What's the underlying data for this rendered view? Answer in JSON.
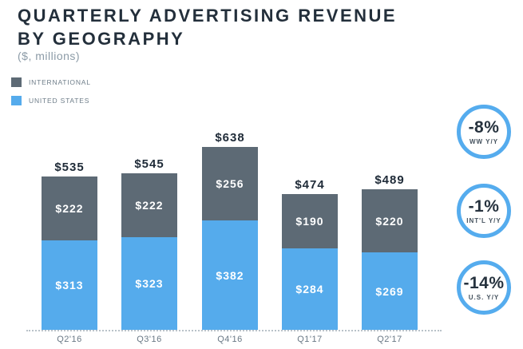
{
  "header": {
    "title_line1": "QUARTERLY ADVERTISING REVENUE",
    "title_line2": "BY GEOGRAPHY",
    "subtitle": "($, millions)"
  },
  "legend": {
    "items": [
      {
        "label": "INTERNATIONAL",
        "color": "#5d6a75"
      },
      {
        "label": "UNITED STATES",
        "color": "#55abec"
      }
    ]
  },
  "chart_data": {
    "type": "bar",
    "stacked": true,
    "title": "QUARTERLY ADVERTISING REVENUE BY GEOGRAPHY",
    "units": "$, millions",
    "categories": [
      "Q2'16",
      "Q3'16",
      "Q4'16",
      "Q1'17",
      "Q2'17"
    ],
    "series": [
      {
        "name": "UNITED STATES",
        "color": "#55abec",
        "values": [
          313,
          323,
          382,
          284,
          269
        ],
        "labels": [
          "$313",
          "$323",
          "$382",
          "$284",
          "$269"
        ]
      },
      {
        "name": "INTERNATIONAL",
        "color": "#5d6a75",
        "values": [
          222,
          222,
          256,
          190,
          220
        ],
        "labels": [
          "$222",
          "$222",
          "$256",
          "$190",
          "$220"
        ]
      }
    ],
    "totals": [
      535,
      545,
      638,
      474,
      489
    ],
    "total_labels": [
      "$535",
      "$545",
      "$638",
      "$474",
      "$489"
    ],
    "ylim": [
      0,
      660
    ],
    "grid": false,
    "legend_position": "top-left"
  },
  "badges": [
    {
      "value": "-8%",
      "label": "WW Y/Y"
    },
    {
      "value": "-1%",
      "label": "INT'L Y/Y"
    },
    {
      "value": "-14%",
      "label": "U.S. Y/Y"
    }
  ],
  "colors": {
    "title": "#232f3b",
    "muted": "#8c9ba7",
    "axis_dots": "#b9c2c9",
    "badge_ring": "#55acee",
    "international": "#5d6a75",
    "united_states": "#55abec"
  }
}
